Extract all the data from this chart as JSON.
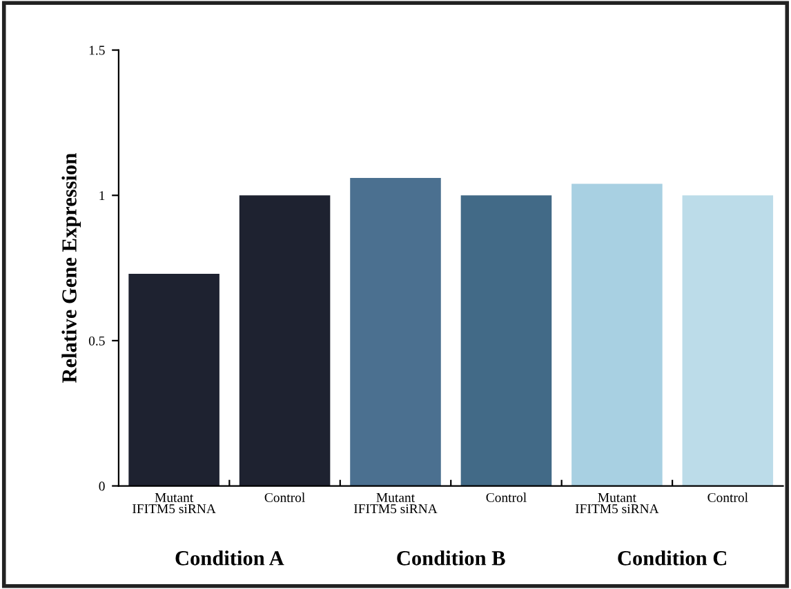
{
  "chart_data": {
    "type": "bar",
    "ylabel": "Relative Gene Expression",
    "categories": [
      "Mutant\nIFITM5 siRNA",
      "Control",
      "Mutant\nIFITM5 siRNA",
      "Control",
      "Mutant\nIFITM5 siRNA",
      "Control"
    ],
    "values": [
      0.73,
      1.0,
      1.06,
      1.0,
      1.04,
      1.0
    ],
    "colors": [
      "#1e2230",
      "#1e2230",
      "#4b7090",
      "#426a87",
      "#a8d0e2",
      "#bcdce9"
    ],
    "ylim": [
      0,
      1.5
    ],
    "yticks": [
      0,
      0.5,
      1,
      1.5
    ],
    "grid": false,
    "legend": false,
    "annotations": [
      "Condition A",
      "Condition B",
      "Condition C"
    ]
  }
}
